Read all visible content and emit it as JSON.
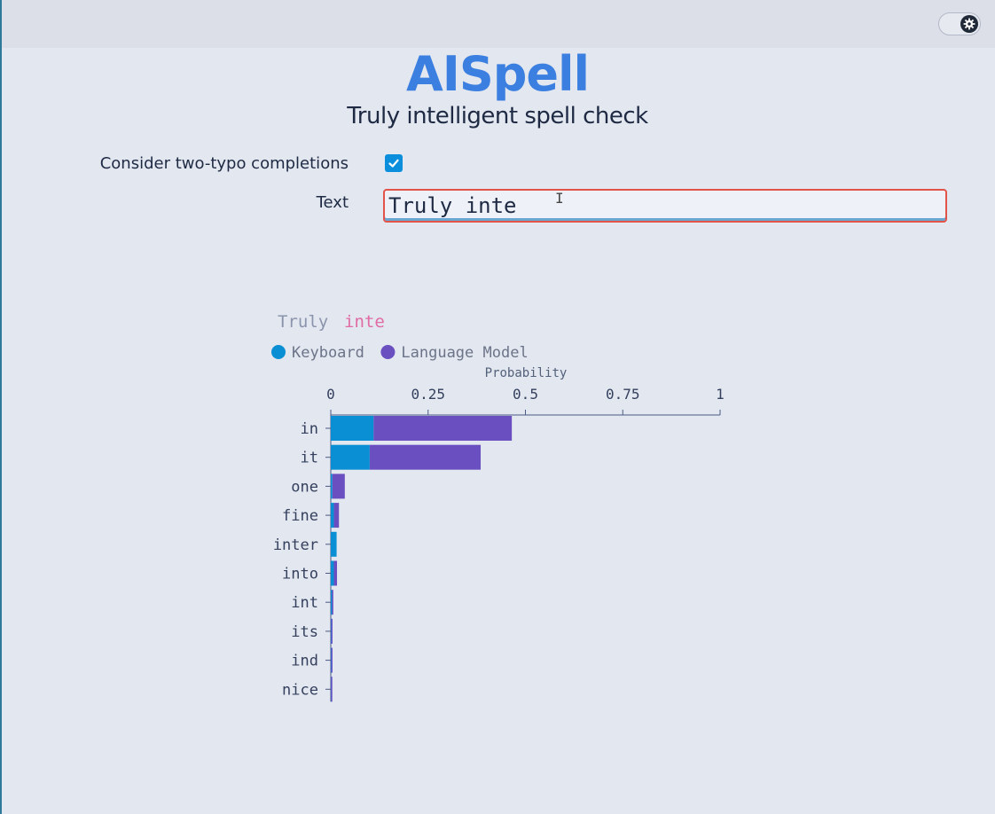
{
  "app": {
    "title": "AISpell",
    "subtitle": "Truly intelligent spell check"
  },
  "settings": {
    "theme_toggle_icon": "gear-icon"
  },
  "options": {
    "two_typo_label": "Consider two-typo completions",
    "two_typo_checked": true
  },
  "text_field": {
    "label": "Text",
    "value": "Truly inte"
  },
  "prediction": {
    "context_text": "Truly",
    "partial_word": "inte"
  },
  "colors": {
    "brand": "#3b7fe0",
    "keyboard": "#0b8fd4",
    "language_model": "#6a4fc1",
    "partial_word": "#e06ba5",
    "input_border": "#e2534a"
  },
  "chart_data": {
    "type": "bar",
    "orientation": "horizontal",
    "stacked": true,
    "xlabel": "Probability",
    "xlim": [
      0,
      1
    ],
    "xticks": [
      "0",
      "0.25",
      "0.5",
      "0.75",
      "1"
    ],
    "legend_position": "top-left",
    "categories": [
      "in",
      "it",
      "one",
      "fine",
      "inter",
      "into",
      "int",
      "its",
      "ind",
      "nice"
    ],
    "series": [
      {
        "name": "Keyboard",
        "values": [
          0.11,
          0.1,
          0.004,
          0.008,
          0.015,
          0.008,
          0.003,
          0.001,
          0.001,
          0.0005
        ]
      },
      {
        "name": "Language Model",
        "values": [
          0.355,
          0.285,
          0.032,
          0.013,
          0.0,
          0.008,
          0.002,
          0.002,
          0.001,
          0.0015
        ]
      }
    ]
  }
}
